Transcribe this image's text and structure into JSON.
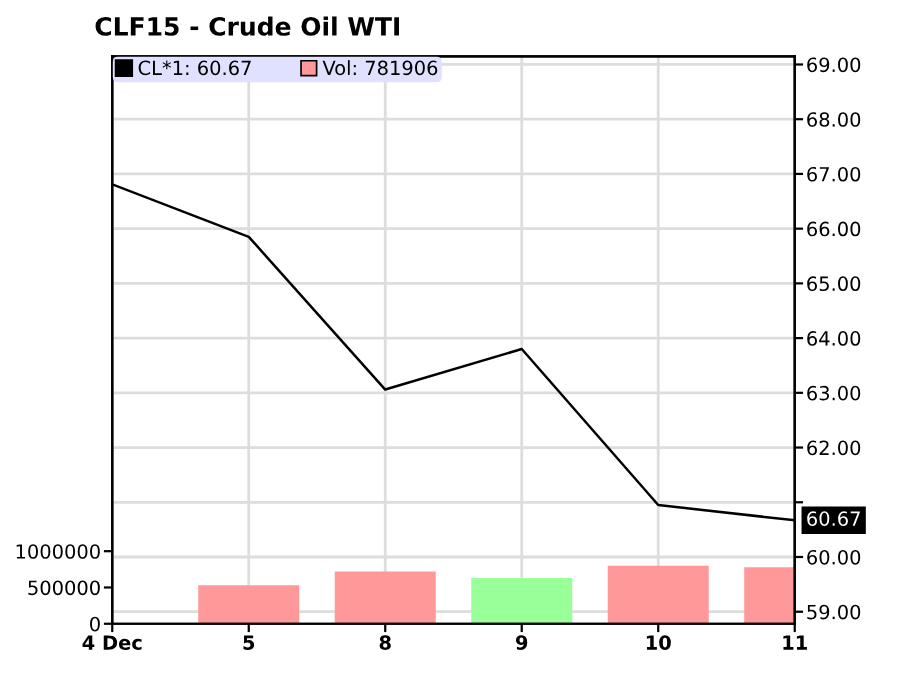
{
  "chart_data": {
    "type": "line",
    "title": "CLF15 - Crude Oil WTI",
    "categories": [
      "4 Dec",
      "5",
      "8",
      "9",
      "10",
      "11"
    ],
    "series": [
      {
        "name": "CL*1: 60.67",
        "color": "#000000",
        "axis": "y",
        "values": [
          66.81,
          65.85,
          63.06,
          63.8,
          60.95,
          60.67
        ]
      },
      {
        "name": "Vol: 781906",
        "type": "bar",
        "color": "#ff9999",
        "axis": "y2",
        "colors": [
          "#ff9999",
          "#ff9999",
          "#ff9999",
          "#99ff99",
          "#ff9999",
          "#ff9999"
        ],
        "values": [
          null,
          530000,
          720000,
          630000,
          800000,
          780000
        ]
      }
    ],
    "ylim": [
      58.78,
      69.15
    ],
    "yticks": [
      {
        "value": 59,
        "label": "59.00"
      },
      {
        "value": 60,
        "label": "60.00"
      },
      {
        "value": 61,
        "label": null
      },
      {
        "value": 62,
        "label": "62.00"
      },
      {
        "value": 63,
        "label": "63.00"
      },
      {
        "value": 64,
        "label": "64.00"
      },
      {
        "value": 65,
        "label": "65.00"
      },
      {
        "value": 66,
        "label": "66.00"
      },
      {
        "value": 67,
        "label": "67.00"
      },
      {
        "value": 68,
        "label": "68.00"
      },
      {
        "value": 69,
        "label": "69.00"
      }
    ],
    "y2lim": [
      0,
      7820000
    ],
    "y2ticks": [
      0,
      500000,
      1000000
    ],
    "annotations": [
      {
        "text": "60.67",
        "x": "11",
        "y": 60.67
      }
    ],
    "grid": true,
    "legend": "top left"
  }
}
